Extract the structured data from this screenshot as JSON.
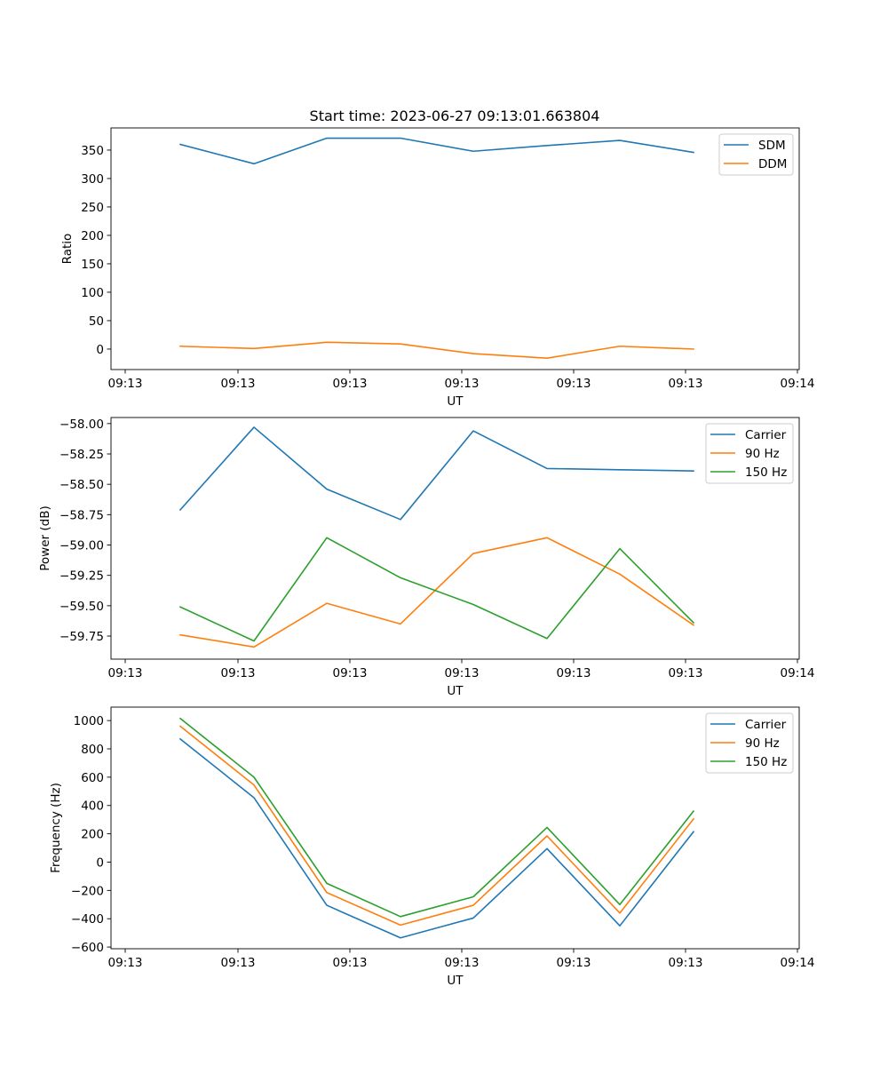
{
  "figure_title": "Start time: 2023-06-27 09:13:01.663804",
  "colors": {
    "blue": "#1f77b4",
    "orange": "#ff7f0e",
    "green": "#2ca02c"
  },
  "chart_data": [
    {
      "type": "line",
      "title": "Start time: 2023-06-27 09:13:01.663804",
      "xlabel": "UT",
      "ylabel": "Ratio",
      "x_ticks": [
        "09:13",
        "09:13",
        "09:13",
        "09:13",
        "09:13",
        "09:13",
        "09:14"
      ],
      "y_ticks": [
        "0",
        "50",
        "100",
        "150",
        "200",
        "250",
        "300",
        "350"
      ],
      "y_tick_values": [
        0,
        50,
        100,
        150,
        200,
        250,
        300,
        350
      ],
      "ylim": [
        -36,
        389
      ],
      "grid": false,
      "legend_position": "upper right",
      "series": [
        {
          "name": "SDM",
          "color": "#1f77b4",
          "values": [
            360,
            326,
            371,
            371,
            348,
            358,
            367,
            346
          ]
        },
        {
          "name": "DDM",
          "color": "#ff7f0e",
          "values": [
            5,
            1,
            12,
            9,
            -8,
            -16,
            5,
            0
          ]
        }
      ]
    },
    {
      "type": "line",
      "title": "",
      "xlabel": "UT",
      "ylabel": "Power (dB)",
      "x_ticks": [
        "09:13",
        "09:13",
        "09:13",
        "09:13",
        "09:13",
        "09:13",
        "09:14"
      ],
      "y_ticks": [
        "−58.00",
        "−58.25",
        "−58.50",
        "−58.75",
        "−59.00",
        "−59.25",
        "−59.50",
        "−59.75"
      ],
      "y_tick_values": [
        -58.0,
        -58.25,
        -58.5,
        -58.75,
        -59.0,
        -59.25,
        -59.5,
        -59.75
      ],
      "ylim": [
        -59.94,
        -57.95
      ],
      "grid": false,
      "legend_position": "upper right",
      "series": [
        {
          "name": "Carrier",
          "color": "#1f77b4",
          "values": [
            -58.71,
            -58.03,
            -58.54,
            -58.79,
            -58.06,
            -58.37,
            -58.38,
            -58.39
          ]
        },
        {
          "name": "90 Hz",
          "color": "#ff7f0e",
          "values": [
            -59.74,
            -59.84,
            -59.48,
            -59.65,
            -59.07,
            -58.94,
            -59.24,
            -59.66
          ]
        },
        {
          "name": "150 Hz",
          "color": "#2ca02c",
          "values": [
            -59.51,
            -59.79,
            -58.94,
            -59.27,
            -59.49,
            -59.77,
            -59.03,
            -59.64
          ]
        }
      ]
    },
    {
      "type": "line",
      "title": "",
      "xlabel": "UT",
      "ylabel": "Frequency (Hz)",
      "x_ticks": [
        "09:13",
        "09:13",
        "09:13",
        "09:13",
        "09:13",
        "09:13",
        "09:14"
      ],
      "y_ticks": [
        "−600",
        "−400",
        "−200",
        "0",
        "200",
        "400",
        "600",
        "800",
        "1000"
      ],
      "y_tick_values": [
        -600,
        -400,
        -200,
        0,
        200,
        400,
        600,
        800,
        1000
      ],
      "ylim": [
        -612,
        1095
      ],
      "grid": false,
      "legend_position": "upper right",
      "series": [
        {
          "name": "Carrier",
          "color": "#1f77b4",
          "values": [
            870,
            455,
            -305,
            -535,
            -395,
            95,
            -450,
            215
          ]
        },
        {
          "name": "90 Hz",
          "color": "#ff7f0e",
          "values": [
            960,
            545,
            -215,
            -445,
            -305,
            185,
            -360,
            305
          ]
        },
        {
          "name": "150 Hz",
          "color": "#2ca02c",
          "values": [
            1015,
            600,
            -150,
            -385,
            -245,
            245,
            -300,
            360
          ]
        }
      ]
    }
  ]
}
